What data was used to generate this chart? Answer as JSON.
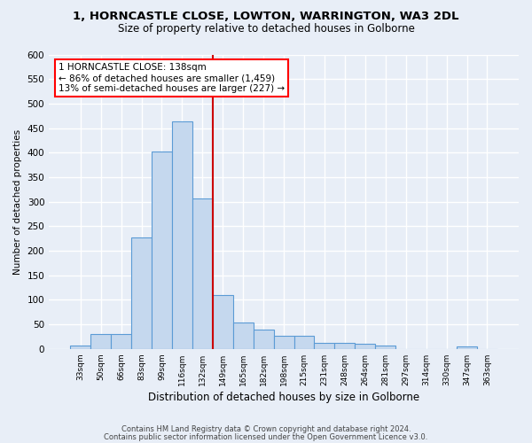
{
  "title1": "1, HORNCASTLE CLOSE, LOWTON, WARRINGTON, WA3 2DL",
  "title2": "Size of property relative to detached houses in Golborne",
  "xlabel": "Distribution of detached houses by size in Golborne",
  "ylabel": "Number of detached properties",
  "categories": [
    "33sqm",
    "50sqm",
    "66sqm",
    "83sqm",
    "99sqm",
    "116sqm",
    "132sqm",
    "149sqm",
    "165sqm",
    "182sqm",
    "198sqm",
    "215sqm",
    "231sqm",
    "248sqm",
    "264sqm",
    "281sqm",
    "297sqm",
    "314sqm",
    "330sqm",
    "347sqm",
    "363sqm"
  ],
  "values": [
    7,
    30,
    30,
    228,
    403,
    463,
    307,
    110,
    54,
    39,
    26,
    26,
    13,
    13,
    10,
    7,
    0,
    0,
    0,
    5,
    0
  ],
  "bar_color": "#c5d8ee",
  "bar_edge_color": "#5b9bd5",
  "annotation_text": "1 HORNCASTLE CLOSE: 138sqm\n← 86% of detached houses are smaller (1,459)\n13% of semi-detached houses are larger (227) →",
  "vline_x": 6.5,
  "vline_color": "#cc0000",
  "footer1": "Contains HM Land Registry data © Crown copyright and database right 2024.",
  "footer2": "Contains public sector information licensed under the Open Government Licence v3.0.",
  "bg_color": "#e8eef7",
  "grid_color": "#ffffff",
  "ylim": [
    0,
    600
  ],
  "yticks": [
    0,
    50,
    100,
    150,
    200,
    250,
    300,
    350,
    400,
    450,
    500,
    550,
    600
  ]
}
